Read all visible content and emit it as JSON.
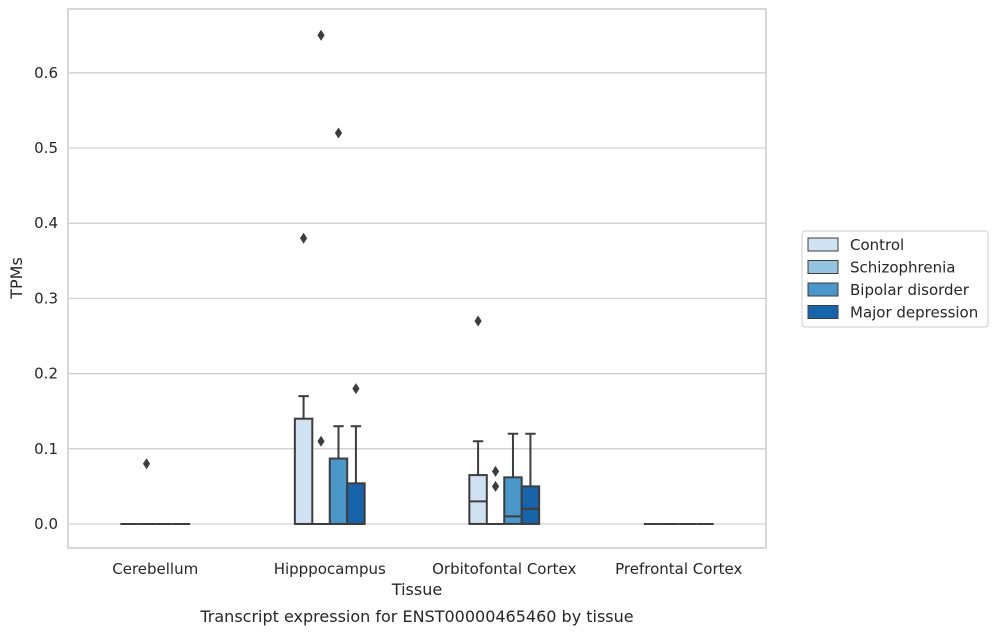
{
  "caption": "Transcript expression for ENST00000465460 by tissue",
  "chart_data": {
    "type": "box",
    "xlabel": "Tissue",
    "ylabel": "TPMs",
    "ylim": [
      -0.032,
      0.685
    ],
    "yticks": [
      "0.0",
      "0.1",
      "0.2",
      "0.3",
      "0.4",
      "0.5",
      "0.6"
    ],
    "grid": "horizontal",
    "legend_position": "right",
    "categories": [
      "Cerebellum",
      "Hipppocampus",
      "Orbitofontal Cortex",
      "Prefrontal Cortex"
    ],
    "series": [
      {
        "name": "Control",
        "color": "#d0e1f2",
        "boxes": [
          {
            "q1": 0,
            "median": 0,
            "q3": 0,
            "whisker_low": 0,
            "whisker_high": 0,
            "outliers": []
          },
          {
            "q1": 0,
            "median": 0,
            "q3": 0.14,
            "whisker_low": 0,
            "whisker_high": 0.17,
            "outliers": [
              0.38
            ]
          },
          {
            "q1": 0,
            "median": 0.03,
            "q3": 0.065,
            "whisker_low": 0,
            "whisker_high": 0.11,
            "outliers": [
              0.27
            ]
          },
          {
            "q1": 0,
            "median": 0,
            "q3": 0,
            "whisker_low": 0,
            "whisker_high": 0,
            "outliers": []
          }
        ]
      },
      {
        "name": "Schizophrenia",
        "color": "#94c4df",
        "boxes": [
          {
            "q1": 0,
            "median": 0,
            "q3": 0,
            "whisker_low": 0,
            "whisker_high": 0,
            "outliers": [
              0.08
            ]
          },
          {
            "q1": 0,
            "median": 0,
            "q3": 0,
            "whisker_low": 0,
            "whisker_high": 0,
            "outliers": [
              0.11,
              0.65
            ]
          },
          {
            "q1": 0,
            "median": 0,
            "q3": 0,
            "whisker_low": 0,
            "whisker_high": 0,
            "outliers": [
              0.05,
              0.07
            ]
          },
          {
            "q1": 0,
            "median": 0,
            "q3": 0,
            "whisker_low": 0,
            "whisker_high": 0,
            "outliers": []
          }
        ]
      },
      {
        "name": "Bipolar disorder",
        "color": "#4a98c9",
        "boxes": [
          {
            "q1": 0,
            "median": 0,
            "q3": 0,
            "whisker_low": 0,
            "whisker_high": 0,
            "outliers": []
          },
          {
            "q1": 0,
            "median": 0,
            "q3": 0.087,
            "whisker_low": 0,
            "whisker_high": 0.13,
            "outliers": [
              0.52
            ]
          },
          {
            "q1": 0,
            "median": 0.01,
            "q3": 0.062,
            "whisker_low": 0,
            "whisker_high": 0.12,
            "outliers": []
          },
          {
            "q1": 0,
            "median": 0,
            "q3": 0,
            "whisker_low": 0,
            "whisker_high": 0,
            "outliers": []
          }
        ]
      },
      {
        "name": "Major depression",
        "color": "#1764ab",
        "boxes": [
          {
            "q1": 0,
            "median": 0,
            "q3": 0,
            "whisker_low": 0,
            "whisker_high": 0,
            "outliers": []
          },
          {
            "q1": 0,
            "median": 0,
            "q3": 0.054,
            "whisker_low": 0,
            "whisker_high": 0.13,
            "outliers": [
              0.18
            ]
          },
          {
            "q1": 0,
            "median": 0.02,
            "q3": 0.05,
            "whisker_low": 0,
            "whisker_high": 0.12,
            "outliers": []
          },
          {
            "q1": 0,
            "median": 0,
            "q3": 0,
            "whisker_low": 0,
            "whisker_high": 0,
            "outliers": []
          }
        ]
      }
    ],
    "outlier_positions_note": ""
  }
}
